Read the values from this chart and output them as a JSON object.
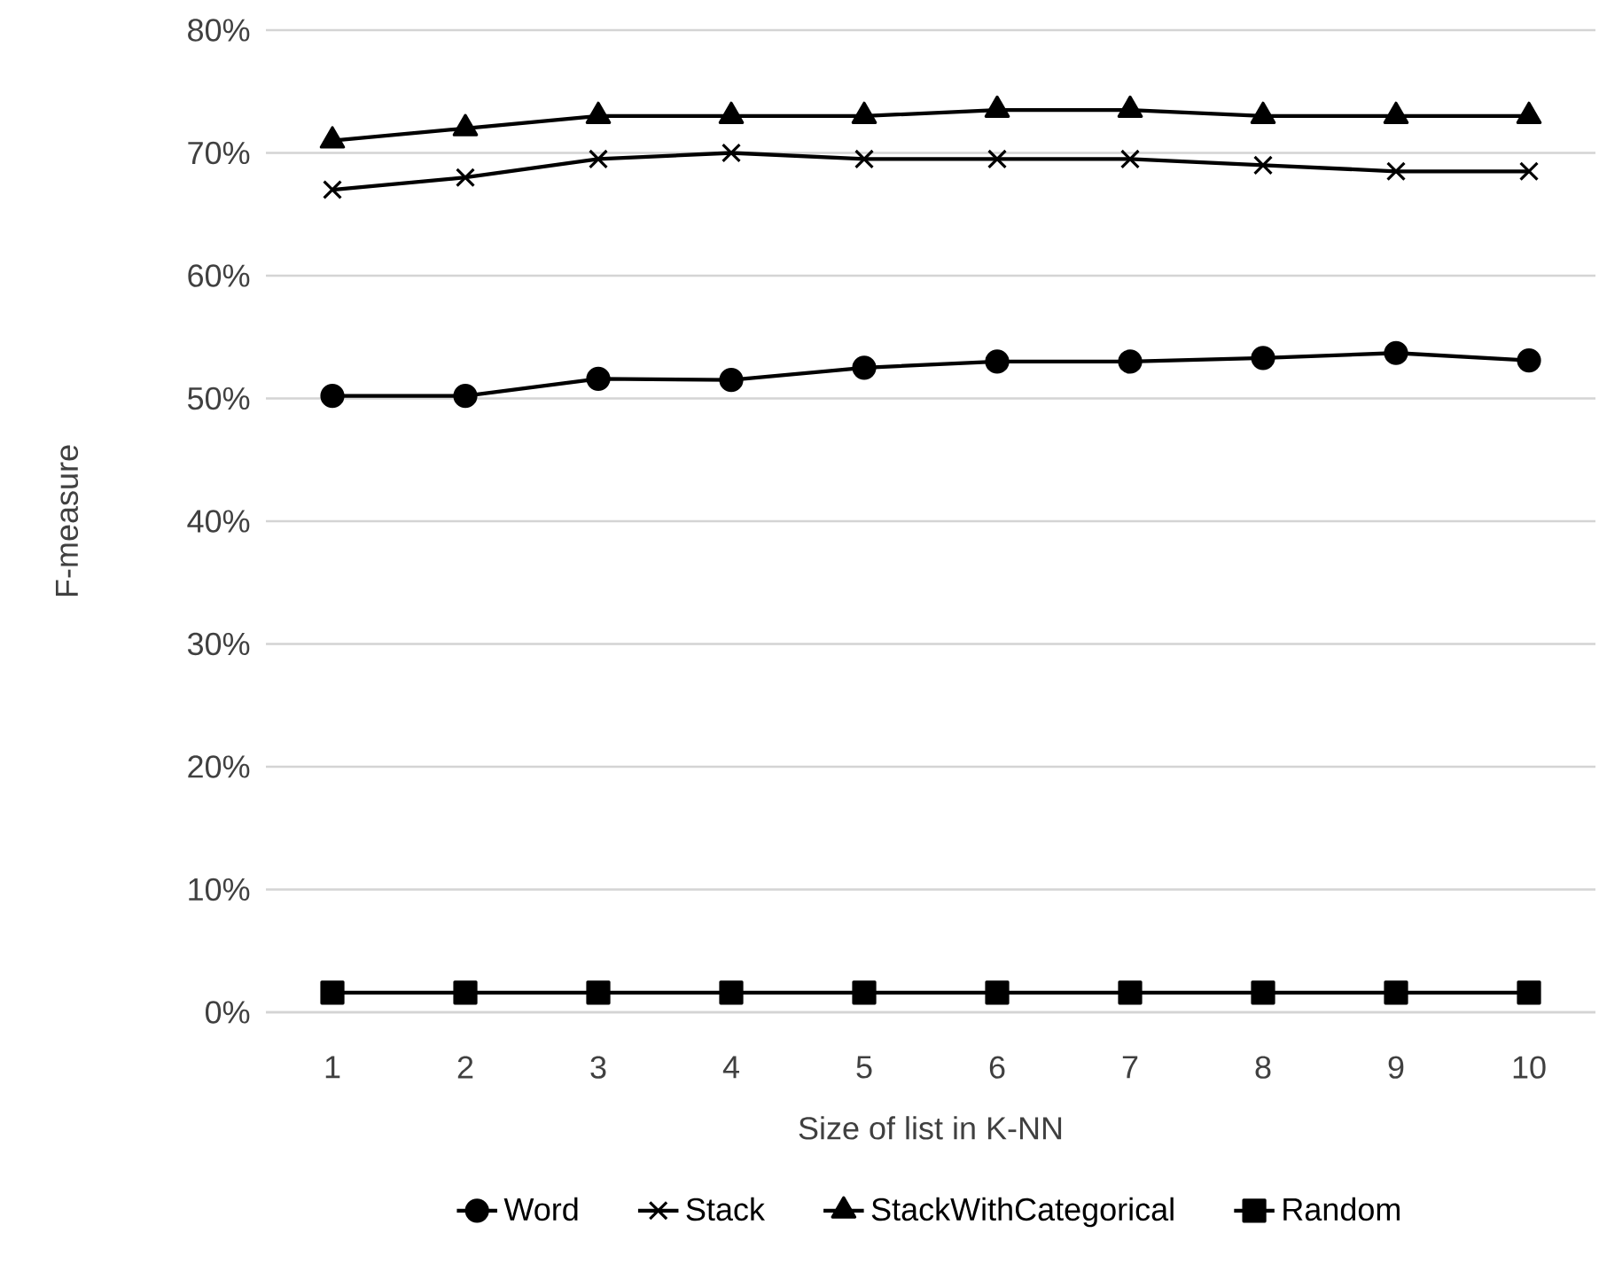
{
  "chart_data": {
    "type": "line",
    "xlabel": "Size of list in K-NN",
    "ylabel": "F-measure",
    "categories": [
      "1",
      "2",
      "3",
      "4",
      "5",
      "6",
      "7",
      "8",
      "9",
      "10"
    ],
    "series": [
      {
        "name": "Word",
        "color": "#000000",
        "marker": "circle",
        "values": [
          50.2,
          50.2,
          51.6,
          51.5,
          52.5,
          53.0,
          53.0,
          53.3,
          53.7,
          53.1
        ]
      },
      {
        "name": "Stack",
        "color": "#000000",
        "marker": "cross",
        "values": [
          67.0,
          68.0,
          69.5,
          70.0,
          69.5,
          69.5,
          69.5,
          69.0,
          68.5,
          68.5
        ]
      },
      {
        "name": "StackWithCategorical",
        "color": "#000000",
        "marker": "triangle",
        "values": [
          71.0,
          72.0,
          73.0,
          73.0,
          73.0,
          73.5,
          73.5,
          73.0,
          73.0,
          73.0
        ]
      },
      {
        "name": "Random",
        "color": "#000000",
        "marker": "square",
        "values": [
          1.6,
          1.6,
          1.6,
          1.6,
          1.6,
          1.6,
          1.6,
          1.6,
          1.6,
          1.6
        ]
      }
    ],
    "ylim": [
      0,
      80
    ],
    "yticks": [
      {
        "value": 0,
        "label": "0%"
      },
      {
        "value": 10,
        "label": "10%"
      },
      {
        "value": 20,
        "label": "20%"
      },
      {
        "value": 30,
        "label": "30%"
      },
      {
        "value": 40,
        "label": "40%"
      },
      {
        "value": 50,
        "label": "50%"
      },
      {
        "value": 60,
        "label": "60%"
      },
      {
        "value": 70,
        "label": "70%"
      },
      {
        "value": 80,
        "label": "80%"
      }
    ],
    "grid": "y",
    "legend": "bottom",
    "line_style": "solid"
  }
}
